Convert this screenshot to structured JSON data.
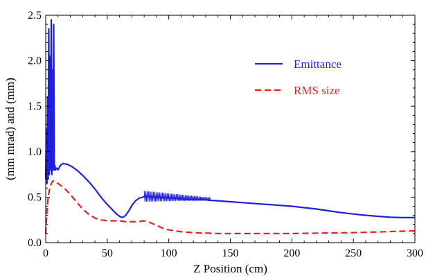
{
  "chart_data": {
    "type": "line",
    "xlabel": "Z Position  (cm)",
    "ylabel": "(mm mrad) and (mm)",
    "xlim": [
      0,
      300
    ],
    "ylim": [
      0,
      2.5
    ],
    "x_ticks": [
      0,
      50,
      100,
      150,
      200,
      250,
      300
    ],
    "y_ticks": [
      0.0,
      0.5,
      1.0,
      1.5,
      2.0,
      2.5
    ],
    "x_tick_labels": [
      "0",
      "50",
      "100",
      "150",
      "200",
      "250",
      "300"
    ],
    "y_tick_labels": [
      "0.0",
      "0.5",
      "1.0",
      "1.5",
      "2.0",
      "2.5"
    ],
    "grid": false,
    "legend_position": "top-right",
    "series": [
      {
        "name": "Emittance",
        "color": "#1f1fdf",
        "style": "solid",
        "x": [
          0,
          0.5,
          1,
          1.5,
          2,
          2.5,
          3,
          3.5,
          4,
          4.5,
          5,
          5.5,
          6,
          6.5,
          7,
          7.5,
          8,
          9,
          10,
          12,
          14,
          18,
          22,
          26,
          30,
          35,
          40,
          45,
          50,
          55,
          58,
          61,
          63,
          65,
          68,
          70,
          73,
          76,
          79,
          80,
          81,
          90,
          100,
          110,
          120,
          130,
          134,
          140,
          150,
          160,
          170,
          180,
          190,
          200,
          210,
          220,
          230,
          240,
          250,
          260,
          270,
          280,
          290,
          300
        ],
        "y": [
          0.7,
          1.25,
          0.65,
          1.6,
          0.7,
          2.35,
          0.75,
          2.05,
          0.8,
          2.45,
          0.75,
          1.9,
          0.8,
          2.4,
          0.8,
          0.85,
          0.8,
          0.82,
          0.8,
          0.85,
          0.87,
          0.86,
          0.83,
          0.79,
          0.74,
          0.67,
          0.59,
          0.5,
          0.42,
          0.35,
          0.31,
          0.28,
          0.28,
          0.3,
          0.36,
          0.41,
          0.46,
          0.49,
          0.5,
          0.51,
          0.51,
          0.5,
          0.49,
          0.48,
          0.47,
          0.47,
          0.465,
          0.46,
          0.45,
          0.44,
          0.43,
          0.42,
          0.41,
          0.4,
          0.385,
          0.37,
          0.35,
          0.33,
          0.315,
          0.3,
          0.29,
          0.28,
          0.275,
          0.275
        ]
      },
      {
        "name": "RMS size",
        "color": "#ee1c1c",
        "style": "dashed",
        "x": [
          0,
          1,
          2,
          3,
          4,
          5,
          6,
          8,
          10,
          15,
          20,
          25,
          30,
          35,
          40,
          45,
          50,
          55,
          60,
          65,
          70,
          75,
          80,
          85,
          90,
          95,
          100,
          110,
          120,
          130,
          140,
          150,
          175,
          200,
          225,
          250,
          275,
          300
        ],
        "y": [
          0.1,
          0.35,
          0.5,
          0.58,
          0.63,
          0.66,
          0.68,
          0.67,
          0.65,
          0.6,
          0.53,
          0.45,
          0.37,
          0.31,
          0.27,
          0.25,
          0.24,
          0.24,
          0.24,
          0.23,
          0.23,
          0.23,
          0.24,
          0.22,
          0.19,
          0.16,
          0.14,
          0.12,
          0.11,
          0.105,
          0.1,
          0.1,
          0.1,
          0.1,
          0.105,
          0.11,
          0.12,
          0.13
        ]
      }
    ],
    "annotations": [
      {
        "series": "Emittance",
        "description": "high-frequency oscillation band",
        "x_range": [
          80,
          134
        ],
        "y_range": [
          0.45,
          0.57
        ]
      }
    ]
  }
}
